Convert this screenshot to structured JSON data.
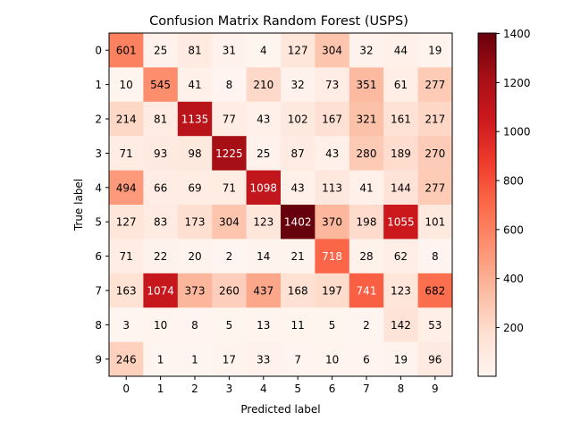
{
  "chart_data": {
    "type": "heatmap",
    "title": "Confusion Matrix Random Forest (USPS)",
    "xlabel": "Predicted label",
    "ylabel": "True label",
    "x_ticks": [
      "0",
      "1",
      "2",
      "3",
      "4",
      "5",
      "6",
      "7",
      "8",
      "9"
    ],
    "y_ticks": [
      "0",
      "1",
      "2",
      "3",
      "4",
      "5",
      "6",
      "7",
      "8",
      "9"
    ],
    "colormap": "Reds",
    "value_range": [
      1,
      1402
    ],
    "colorbar_ticks": [
      200,
      400,
      600,
      800,
      1000,
      1200,
      1400
    ],
    "matrix": [
      [
        601,
        25,
        81,
        31,
        4,
        127,
        304,
        32,
        44,
        19
      ],
      [
        10,
        545,
        41,
        8,
        210,
        32,
        73,
        351,
        61,
        277
      ],
      [
        214,
        81,
        1135,
        77,
        43,
        102,
        167,
        321,
        161,
        217
      ],
      [
        71,
        93,
        98,
        1225,
        25,
        87,
        43,
        280,
        189,
        270
      ],
      [
        494,
        66,
        69,
        71,
        1098,
        43,
        113,
        41,
        144,
        277
      ],
      [
        127,
        83,
        173,
        304,
        123,
        1402,
        370,
        198,
        1055,
        101
      ],
      [
        71,
        22,
        20,
        2,
        14,
        21,
        718,
        28,
        62,
        8
      ],
      [
        163,
        1074,
        373,
        260,
        437,
        168,
        197,
        741,
        123,
        682
      ],
      [
        3,
        10,
        8,
        5,
        13,
        11,
        5,
        2,
        142,
        53
      ],
      [
        246,
        1,
        1,
        17,
        33,
        7,
        10,
        6,
        19,
        96
      ]
    ]
  }
}
